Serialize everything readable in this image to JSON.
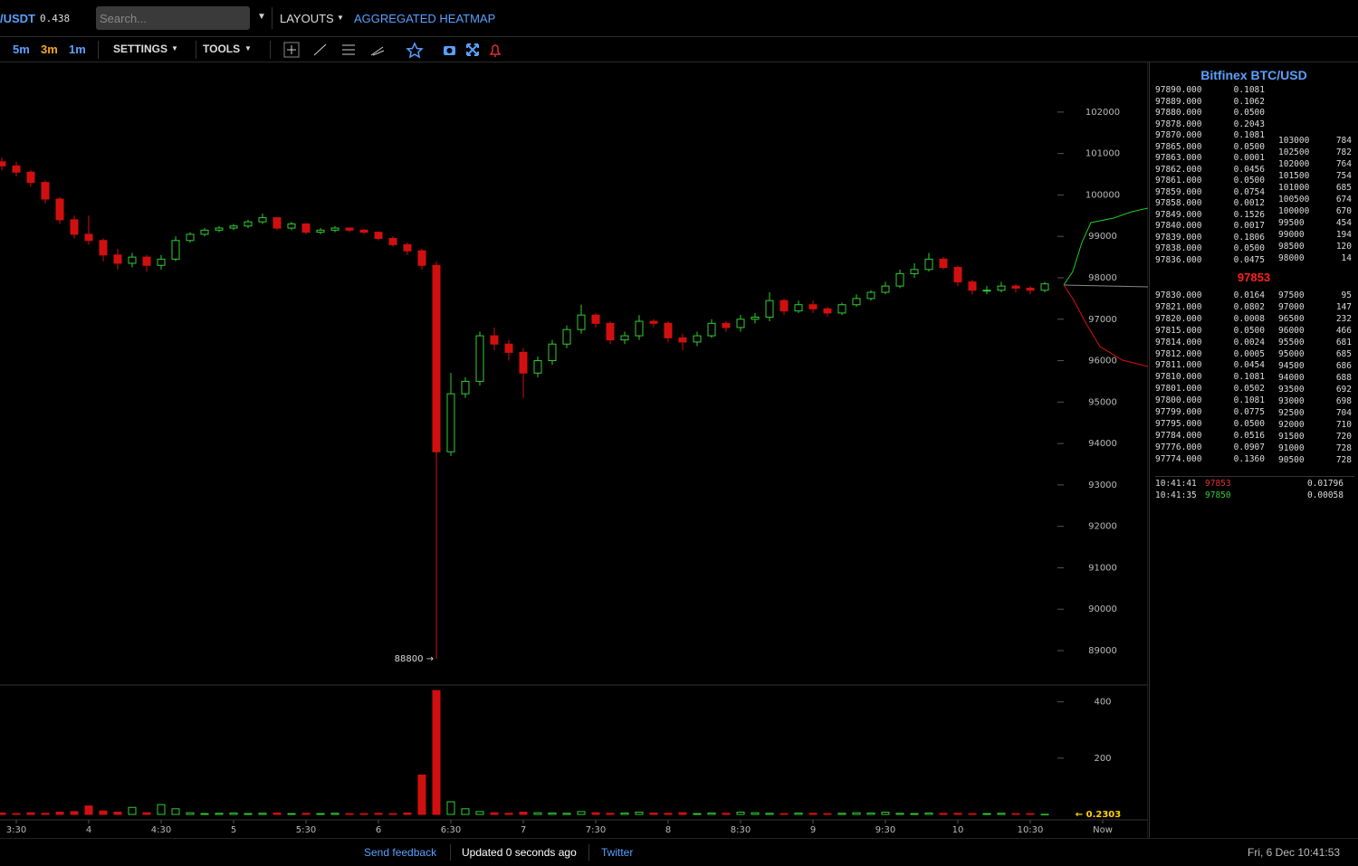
{
  "toolbar": {
    "symbol": "/USDT",
    "symbol_value": "0.438",
    "search_placeholder": "Search...",
    "layouts": "LAYOUTS",
    "heatmap": "AGGREGATED HEATMAP",
    "timeframes": [
      "5m",
      "3m",
      "1m"
    ],
    "settings": "SETTINGS",
    "tools": "TOOLS"
  },
  "chart_data": {
    "type": "candlestick",
    "x": [
      3.4,
      3.5,
      3.6,
      3.7,
      3.8,
      3.9,
      4,
      4.1,
      4.2,
      4.3,
      4.4,
      4.5,
      4.6,
      4.7,
      4.8,
      4.9,
      5,
      5.1,
      5.2,
      5.3,
      5.4,
      5.5,
      5.6,
      5.7,
      5.8,
      5.9,
      6,
      6.1,
      6.2,
      6.3,
      6.4,
      6.5,
      6.6,
      6.7,
      6.8,
      6.9,
      7,
      7.1,
      7.2,
      7.3,
      7.4,
      7.5,
      7.6,
      7.7,
      7.8,
      7.9,
      8,
      8.1,
      8.2,
      8.3,
      8.4,
      8.5,
      8.6,
      8.7,
      8.8,
      8.9,
      9,
      9.1,
      9.2,
      9.3,
      9.4,
      9.5,
      9.6,
      9.7,
      9.8,
      9.9,
      10,
      10.1,
      10.2,
      10.3,
      10.4,
      10.5,
      10.6
    ],
    "open": [
      100800,
      100700,
      100550,
      100300,
      99900,
      99400,
      99050,
      98900,
      98550,
      98350,
      98500,
      98300,
      98450,
      98900,
      99050,
      99150,
      99200,
      99250,
      99350,
      99450,
      99200,
      99300,
      99100,
      99150,
      99200,
      99150,
      99100,
      98950,
      98800,
      98650,
      98300,
      93800,
      95200,
      95500,
      96600,
      96400,
      96200,
      95700,
      96000,
      96400,
      96750,
      97100,
      96900,
      96500,
      96600,
      96950,
      96900,
      96550,
      96450,
      96600,
      96900,
      96800,
      97000,
      97050,
      97450,
      97200,
      97350,
      97250,
      97150,
      97350,
      97500,
      97650,
      97800,
      98100,
      98200,
      98450,
      98250,
      97900,
      97700,
      97700,
      97800,
      97750,
      97700
    ],
    "high": [
      100900,
      100800,
      100600,
      100350,
      99950,
      99500,
      99500,
      98950,
      98700,
      98600,
      98550,
      98550,
      99000,
      99100,
      99200,
      99250,
      99300,
      99400,
      99550,
      99450,
      99350,
      99320,
      99200,
      99250,
      99220,
      99180,
      99120,
      99000,
      98850,
      98700,
      98400,
      95700,
      95600,
      96700,
      96800,
      96500,
      96300,
      96100,
      96500,
      96850,
      97350,
      97150,
      96950,
      96700,
      97100,
      97000,
      96950,
      96650,
      96700,
      97000,
      96950,
      97100,
      97150,
      97650,
      97500,
      97450,
      97450,
      97300,
      97400,
      97600,
      97700,
      97900,
      98200,
      98350,
      98600,
      98500,
      98300,
      97950,
      97800,
      97900,
      97850,
      97800,
      97900
    ],
    "low": [
      100600,
      100450,
      100200,
      99800,
      99300,
      98950,
      98800,
      98400,
      98200,
      98250,
      98150,
      98200,
      98400,
      98850,
      99000,
      99100,
      99150,
      99200,
      99300,
      99150,
      99150,
      99050,
      99050,
      99100,
      99100,
      99050,
      98900,
      98750,
      98550,
      98200,
      88800,
      93700,
      95100,
      95400,
      96250,
      96000,
      95100,
      95600,
      95900,
      96300,
      96650,
      96800,
      96400,
      96400,
      96500,
      96800,
      96450,
      96250,
      96350,
      96550,
      96700,
      96700,
      96900,
      96950,
      97100,
      97150,
      97150,
      97050,
      97100,
      97300,
      97450,
      97600,
      97750,
      98000,
      98150,
      98200,
      97800,
      97600,
      97600,
      97650,
      97650,
      97600,
      97650
    ],
    "close": [
      100700,
      100550,
      100300,
      99900,
      99400,
      99050,
      98900,
      98550,
      98350,
      98500,
      98300,
      98450,
      98900,
      99050,
      99150,
      99200,
      99250,
      99350,
      99450,
      99200,
      99300,
      99100,
      99150,
      99200,
      99150,
      99100,
      98950,
      98800,
      98650,
      98300,
      93800,
      95200,
      95500,
      96600,
      96400,
      96200,
      95700,
      96000,
      96400,
      96750,
      97100,
      96900,
      96500,
      96600,
      96950,
      96900,
      96550,
      96450,
      96600,
      96900,
      96800,
      97000,
      97050,
      97450,
      97200,
      97350,
      97250,
      97150,
      97350,
      97500,
      97650,
      97800,
      98100,
      98200,
      98450,
      98250,
      97900,
      97700,
      97700,
      97800,
      97750,
      97700,
      97853
    ],
    "volume": [
      5,
      3,
      6,
      4,
      8,
      10,
      30,
      12,
      8,
      25,
      6,
      35,
      20,
      6,
      3,
      4,
      5,
      3,
      4,
      5,
      3,
      4,
      3,
      4,
      3,
      3,
      4,
      3,
      5,
      140,
      440,
      45,
      20,
      10,
      6,
      4,
      8,
      6,
      5,
      4,
      10,
      6,
      4,
      5,
      8,
      5,
      4,
      6,
      3,
      5,
      4,
      8,
      6,
      4,
      3,
      5,
      4,
      3,
      4,
      6,
      5,
      8,
      4,
      3,
      5,
      4,
      4,
      3,
      3,
      4,
      3,
      3,
      0.2303
    ],
    "xlim": [
      3.3875,
      11.3125
    ],
    "xticks": [
      {
        "value": 3.5,
        "label": "3:30"
      },
      4,
      {
        "value": 4.5,
        "label": "4:30"
      },
      5,
      {
        "value": 5.5,
        "label": "5:30"
      },
      6,
      {
        "value": 6.5,
        "label": "6:30"
      },
      7,
      {
        "value": 7.5,
        "label": "7:30"
      },
      8,
      {
        "value": 8.5,
        "label": "8:30"
      },
      9,
      {
        "value": 9.5,
        "label": "9:30"
      },
      10,
      {
        "value": 10.5,
        "label": "10:30"
      },
      {
        "value": 11,
        "label": "Now"
      }
    ],
    "ylim": [
      88170,
      103220
    ],
    "yticks": [
      89000,
      90000,
      91000,
      92000,
      93000,
      94000,
      95000,
      96000,
      97000,
      98000,
      99000,
      100000,
      101000,
      102000
    ],
    "volume_ylim": [
      0,
      450
    ],
    "volume_yticks": [
      200,
      400
    ],
    "up_color": "#33cc33",
    "down_color": "#d01010",
    "annotations": [
      {
        "text": "88800 →"
      }
    ],
    "volume_label": "← 0.2303"
  },
  "orderbook": {
    "title": "Bitfinex BTC/USD",
    "asks": [
      [
        "97890.000",
        "0.1081"
      ],
      [
        "97889.000",
        "0.1062"
      ],
      [
        "97880.000",
        "0.0500"
      ],
      [
        "97878.000",
        "0.2043"
      ],
      [
        "97870.000",
        "0.1081"
      ],
      [
        "97865.000",
        "0.0500"
      ],
      [
        "97863.000",
        "0.0001"
      ],
      [
        "97862.000",
        "0.0456"
      ],
      [
        "97861.000",
        "0.0500"
      ],
      [
        "97859.000",
        "0.0754"
      ],
      [
        "97858.000",
        "0.0012"
      ],
      [
        "97849.000",
        "0.1526"
      ],
      [
        "97840.000",
        "0.0017"
      ],
      [
        "97839.000",
        "0.1806"
      ],
      [
        "97838.000",
        "0.0500"
      ],
      [
        "97836.000",
        "0.0475"
      ]
    ],
    "last_price": 97853,
    "bids": [
      [
        "97830.000",
        "0.0164"
      ],
      [
        "97821.000",
        "0.0802"
      ],
      [
        "97820.000",
        "0.0008"
      ],
      [
        "97815.000",
        "0.0500"
      ],
      [
        "97814.000",
        "0.0024"
      ],
      [
        "97812.000",
        "0.0005"
      ],
      [
        "97811.000",
        "0.0454"
      ],
      [
        "97810.000",
        "0.1081"
      ],
      [
        "97801.000",
        "0.0502"
      ],
      [
        "97800.000",
        "0.1081"
      ],
      [
        "97799.000",
        "0.0775"
      ],
      [
        "97795.000",
        "0.0500"
      ],
      [
        "97784.000",
        "0.0516"
      ],
      [
        "97776.000",
        "0.0907"
      ],
      [
        "97774.000",
        "0.1360"
      ]
    ],
    "ask_levels": [
      [
        103000,
        784
      ],
      [
        102500,
        782
      ],
      [
        102000,
        764
      ],
      [
        101500,
        754
      ],
      [
        101000,
        685
      ],
      [
        100500,
        674
      ],
      [
        100000,
        670
      ],
      [
        99500,
        454
      ],
      [
        99000,
        194
      ],
      [
        98500,
        120
      ],
      [
        98000,
        14
      ]
    ],
    "bid_levels": [
      [
        97500,
        95
      ],
      [
        97000,
        147
      ],
      [
        96500,
        232
      ],
      [
        96000,
        466
      ],
      [
        95500,
        681
      ],
      [
        95000,
        685
      ],
      [
        94500,
        686
      ],
      [
        94000,
        688
      ],
      [
        93500,
        692
      ],
      [
        93000,
        698
      ],
      [
        92500,
        704
      ],
      [
        92000,
        710
      ],
      [
        91500,
        720
      ],
      [
        91000,
        728
      ],
      [
        90500,
        728
      ]
    ],
    "trades": [
      {
        "time": "10:41:41",
        "price": 97853,
        "size": "0.01796",
        "color": "#e03030"
      },
      {
        "time": "10:41:35",
        "price": 97850,
        "size": "0.00058",
        "color": "#33cc33"
      }
    ]
  },
  "footer": {
    "feedback": "Send feedback",
    "updated": "Updated 0 seconds ago",
    "twitter": "Twitter",
    "datetime": "Fri, 6 Dec 10:41:53"
  }
}
